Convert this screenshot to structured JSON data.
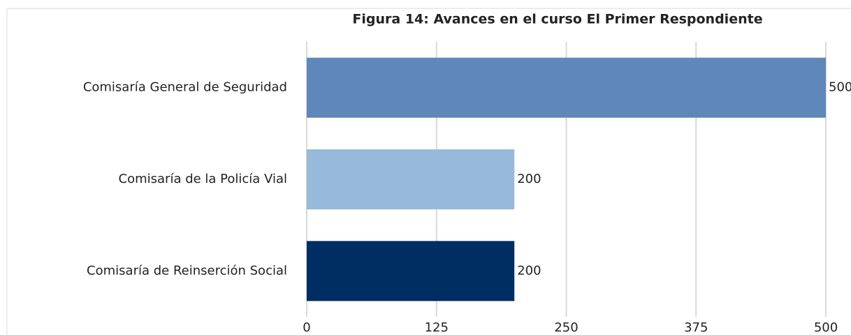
{
  "chart_data": {
    "type": "barh",
    "title": "Figura 14: Avances en el curso El Primer Respondiente",
    "categories": [
      "Comisaría General de Seguridad",
      "Comisaría de la Policía Vial",
      "Comisaría de Reinserción Social"
    ],
    "values": [
      500,
      200,
      200
    ],
    "colors": [
      "#5f87ba",
      "#97b9da",
      "#002d62"
    ],
    "xlim": [
      0,
      500
    ],
    "xticks": [
      0,
      125,
      250,
      375,
      500
    ],
    "grid": true
  }
}
